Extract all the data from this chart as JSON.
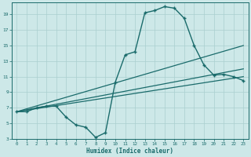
{
  "xlabel": "Humidex (Indice chaleur)",
  "bg_color": "#cde8e8",
  "grid_color": "#aacfcf",
  "line_color": "#1a6b6b",
  "xlim": [
    -0.5,
    23.5
  ],
  "ylim": [
    3,
    20.5
  ],
  "yticks": [
    3,
    5,
    7,
    9,
    11,
    13,
    15,
    17,
    19
  ],
  "xticks": [
    0,
    1,
    2,
    3,
    4,
    5,
    6,
    7,
    8,
    9,
    10,
    11,
    12,
    13,
    14,
    15,
    16,
    17,
    18,
    19,
    20,
    21,
    22,
    23
  ],
  "main_series": {
    "x": [
      0,
      1,
      2,
      3,
      4,
      5,
      6,
      7,
      8,
      9,
      10,
      11,
      12,
      13,
      14,
      15,
      16,
      17,
      18,
      19,
      20,
      21,
      22,
      23
    ],
    "y": [
      6.5,
      6.5,
      7.0,
      7.2,
      7.2,
      5.8,
      4.8,
      4.5,
      3.2,
      3.8,
      10.3,
      13.8,
      14.2,
      19.2,
      19.5,
      20.0,
      19.8,
      18.5,
      15.0,
      12.5,
      11.2,
      11.3,
      11.0,
      10.5
    ],
    "marker": "+",
    "markersize": 3.5,
    "linewidth": 1.0
  },
  "extra_lines": [
    {
      "x": [
        0,
        23
      ],
      "y": [
        6.5,
        11.0
      ],
      "linewidth": 0.9
    },
    {
      "x": [
        0,
        23
      ],
      "y": [
        6.5,
        12.0
      ],
      "linewidth": 0.9
    },
    {
      "x": [
        0,
        23
      ],
      "y": [
        6.5,
        15.0
      ],
      "linewidth": 0.9
    }
  ]
}
